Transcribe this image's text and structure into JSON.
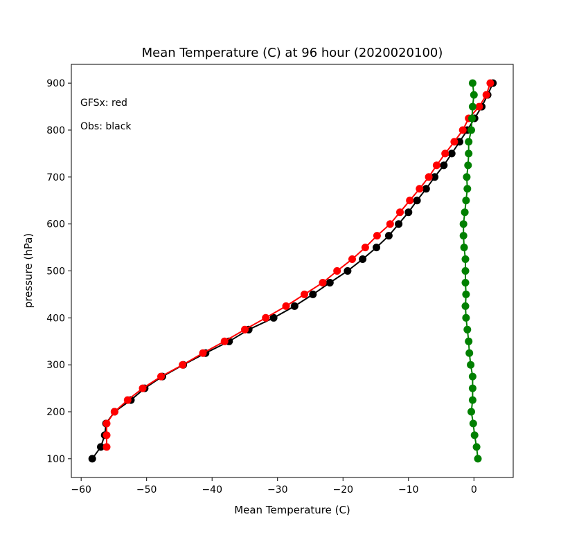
{
  "chart_data": {
    "type": "line",
    "title": "Mean Temperature (C) at 96 hour (2020020100)",
    "xlabel": "Mean Temperature (C)",
    "ylabel": "pressure (hPa)",
    "xlim": [
      -61.5,
      6
    ],
    "ylim": [
      60,
      940
    ],
    "xticks": [
      -60,
      -50,
      -40,
      -30,
      -20,
      -10,
      0
    ],
    "yticks": [
      100,
      200,
      300,
      400,
      500,
      600,
      700,
      800,
      900
    ],
    "grid": false,
    "annotations": [
      "GFSx: red",
      "Obs: black"
    ],
    "y": [
      100,
      125,
      150,
      175,
      200,
      225,
      250,
      275,
      300,
      325,
      350,
      375,
      400,
      425,
      450,
      475,
      500,
      525,
      550,
      575,
      600,
      625,
      650,
      675,
      700,
      725,
      750,
      775,
      800,
      825,
      850,
      875,
      900
    ],
    "series": [
      {
        "color": "#000000",
        "values": [
          -58.3,
          -57,
          -56.4,
          -56.2,
          -54.9,
          -52.4,
          -50.3,
          -47.6,
          -44.4,
          -41,
          -37.4,
          -34.4,
          -30.6,
          -27.4,
          -24.6,
          -22,
          -19.3,
          -17,
          -14.9,
          -13,
          -11.5,
          -10,
          -8.7,
          -7.3,
          -6,
          -4.6,
          -3.4,
          -2.2,
          -1,
          0.1,
          1.2,
          2.1,
          2.9
        ]
      },
      {
        "color": "#ff0000",
        "values": [
          null,
          -56.1,
          -56.1,
          -56.1,
          -54.9,
          -52.9,
          -50.6,
          -47.8,
          -44.5,
          -41.4,
          -38.1,
          -35,
          -31.8,
          -28.7,
          -25.9,
          -23.1,
          -20.9,
          -18.6,
          -16.6,
          -14.8,
          -12.8,
          -11.3,
          -9.8,
          -8.3,
          -6.9,
          -5.7,
          -4.4,
          -3,
          -1.7,
          -0.8,
          0.8,
          1.9,
          2.5
        ]
      },
      {
        "color": "#008000",
        "values": [
          0.6,
          0.4,
          0.1,
          -0.1,
          -0.4,
          -0.2,
          -0.2,
          -0.2,
          -0.5,
          -0.7,
          -0.8,
          -1,
          -1.2,
          -1.3,
          -1.2,
          -1.3,
          -1.3,
          -1.3,
          -1.5,
          -1.6,
          -1.6,
          -1.4,
          -1.2,
          -1,
          -1.1,
          -0.9,
          -0.8,
          -0.8,
          -0.4,
          -0.3,
          -0.2,
          0,
          -0.2
        ]
      }
    ]
  }
}
